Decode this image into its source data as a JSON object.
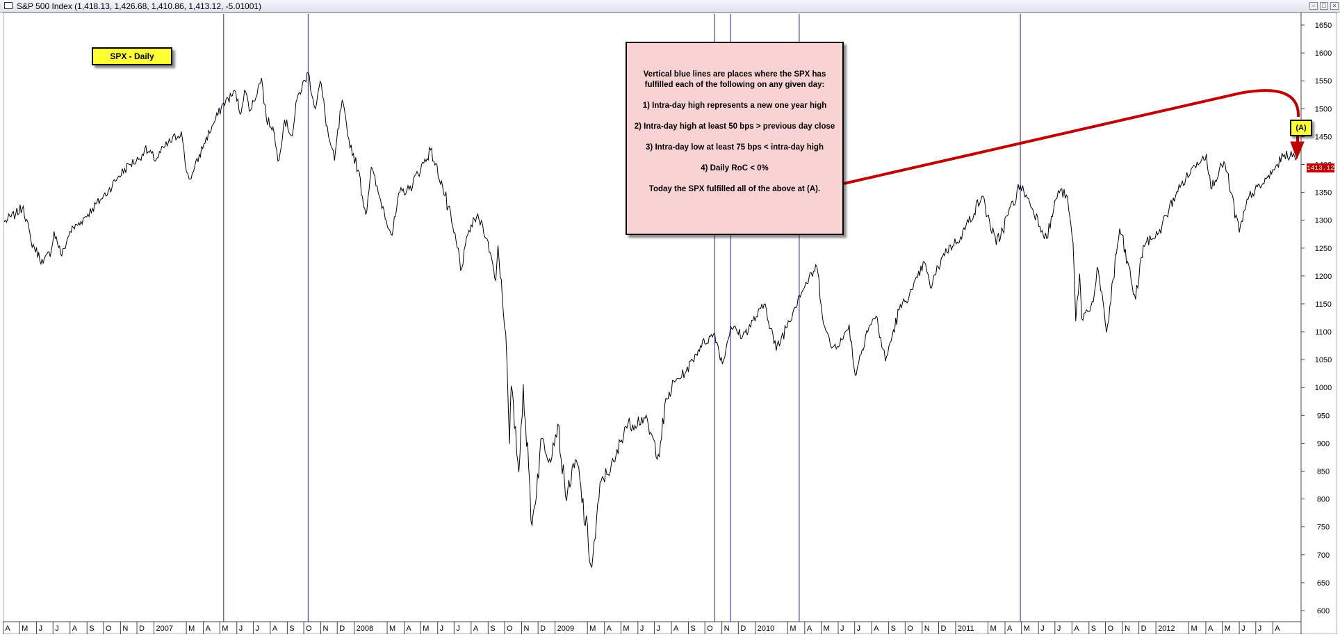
{
  "window": {
    "title": "S&P 500 Index (1,418.13, 1,426.68, 1,410.86, 1,413.12, -5.01001)"
  },
  "legend_label": "SPX - Daily",
  "note": {
    "lines": [
      "Vertical blue lines are places where the SPX has fulfilled each of the following on any given day:",
      "1) Intra-day high represents a new one year high",
      "2) Intra-day high at least 50 bps > previous day close",
      "3) Intra-day low at least 75 bps < intra-day high",
      "4) Daily RoC < 0%",
      "Today the SPX fulfilled all of the above at (A)."
    ]
  },
  "callout_label": "(A)",
  "last_price_label": "1413.12",
  "colors": {
    "price_line": "#000000",
    "signal_lines": "#2323d6",
    "arrow": "#c00000",
    "note_bg": "#f9d2d3",
    "label_bg": "#ffff33"
  },
  "chart_data": {
    "type": "line",
    "title": "",
    "series_name": "",
    "x_start": "2006-04-03",
    "x_end": "2012-09-14",
    "ylim": [
      580,
      1670
    ],
    "y_ticks": [
      600,
      650,
      700,
      750,
      800,
      850,
      900,
      950,
      1000,
      1050,
      1100,
      1150,
      1200,
      1250,
      1300,
      1350,
      1400,
      1450,
      1500,
      1550,
      1600,
      1650
    ],
    "x_tick_labels": [
      {
        "date": "2006-04-01",
        "label": "A"
      },
      {
        "date": "2006-05-01",
        "label": "M"
      },
      {
        "date": "2006-06-01",
        "label": "J"
      },
      {
        "date": "2006-07-01",
        "label": "J"
      },
      {
        "date": "2006-08-01",
        "label": "A"
      },
      {
        "date": "2006-09-01",
        "label": "S"
      },
      {
        "date": "2006-10-01",
        "label": "O"
      },
      {
        "date": "2006-11-01",
        "label": "N"
      },
      {
        "date": "2006-12-01",
        "label": "D"
      },
      {
        "date": "2007-01-01",
        "label": "2007"
      },
      {
        "date": "2007-03-01",
        "label": "M"
      },
      {
        "date": "2007-04-01",
        "label": "A"
      },
      {
        "date": "2007-05-01",
        "label": "M"
      },
      {
        "date": "2007-06-01",
        "label": "J"
      },
      {
        "date": "2007-07-01",
        "label": "J"
      },
      {
        "date": "2007-08-01",
        "label": "A"
      },
      {
        "date": "2007-09-01",
        "label": "S"
      },
      {
        "date": "2007-10-01",
        "label": "O"
      },
      {
        "date": "2007-11-01",
        "label": "N"
      },
      {
        "date": "2007-12-01",
        "label": "D"
      },
      {
        "date": "2008-01-01",
        "label": "2008"
      },
      {
        "date": "2008-03-01",
        "label": "M"
      },
      {
        "date": "2008-04-01",
        "label": "A"
      },
      {
        "date": "2008-05-01",
        "label": "M"
      },
      {
        "date": "2008-06-01",
        "label": "J"
      },
      {
        "date": "2008-07-01",
        "label": "J"
      },
      {
        "date": "2008-08-01",
        "label": "A"
      },
      {
        "date": "2008-09-01",
        "label": "S"
      },
      {
        "date": "2008-10-01",
        "label": "O"
      },
      {
        "date": "2008-11-01",
        "label": "N"
      },
      {
        "date": "2008-12-01",
        "label": "D"
      },
      {
        "date": "2009-01-01",
        "label": "2009"
      },
      {
        "date": "2009-03-01",
        "label": "M"
      },
      {
        "date": "2009-04-01",
        "label": "A"
      },
      {
        "date": "2009-05-01",
        "label": "M"
      },
      {
        "date": "2009-06-01",
        "label": "J"
      },
      {
        "date": "2009-07-01",
        "label": "J"
      },
      {
        "date": "2009-08-01",
        "label": "A"
      },
      {
        "date": "2009-09-01",
        "label": "S"
      },
      {
        "date": "2009-10-01",
        "label": "O"
      },
      {
        "date": "2009-11-01",
        "label": "N"
      },
      {
        "date": "2009-12-01",
        "label": "D"
      },
      {
        "date": "2010-01-01",
        "label": "2010"
      },
      {
        "date": "2010-03-01",
        "label": "M"
      },
      {
        "date": "2010-04-01",
        "label": "A"
      },
      {
        "date": "2010-05-01",
        "label": "M"
      },
      {
        "date": "2010-06-01",
        "label": "J"
      },
      {
        "date": "2010-07-01",
        "label": "J"
      },
      {
        "date": "2010-08-01",
        "label": "A"
      },
      {
        "date": "2010-09-01",
        "label": "S"
      },
      {
        "date": "2010-10-01",
        "label": "O"
      },
      {
        "date": "2010-11-01",
        "label": "N"
      },
      {
        "date": "2010-12-01",
        "label": "D"
      },
      {
        "date": "2011-01-01",
        "label": "2011"
      },
      {
        "date": "2011-03-01",
        "label": "M"
      },
      {
        "date": "2011-04-01",
        "label": "A"
      },
      {
        "date": "2011-05-01",
        "label": "M"
      },
      {
        "date": "2011-06-01",
        "label": "J"
      },
      {
        "date": "2011-07-01",
        "label": "J"
      },
      {
        "date": "2011-08-01",
        "label": "A"
      },
      {
        "date": "2011-09-01",
        "label": "S"
      },
      {
        "date": "2011-10-01",
        "label": "O"
      },
      {
        "date": "2011-11-01",
        "label": "N"
      },
      {
        "date": "2011-12-01",
        "label": "D"
      },
      {
        "date": "2012-01-01",
        "label": "2012"
      },
      {
        "date": "2012-03-01",
        "label": "M"
      },
      {
        "date": "2012-04-01",
        "label": "A"
      },
      {
        "date": "2012-05-01",
        "label": "M"
      },
      {
        "date": "2012-06-01",
        "label": "J"
      },
      {
        "date": "2012-07-01",
        "label": "J"
      },
      {
        "date": "2012-08-01",
        "label": "A"
      }
    ],
    "signal_dates": [
      "2007-05-08",
      "2007-10-09",
      "2009-10-19",
      "2009-11-17",
      "2010-03-22",
      "2011-04-29"
    ],
    "x": [
      "2006-04-03",
      "2006-04-24",
      "2006-05-08",
      "2006-05-22",
      "2006-06-13",
      "2006-06-28",
      "2006-07-03",
      "2006-07-17",
      "2006-08-01",
      "2006-08-21",
      "2006-09-11",
      "2006-09-25",
      "2006-10-10",
      "2006-10-27",
      "2006-11-17",
      "2006-12-04",
      "2006-12-15",
      "2007-01-05",
      "2007-01-19",
      "2007-02-20",
      "2007-02-27",
      "2007-03-06",
      "2007-03-14",
      "2007-04-02",
      "2007-04-19",
      "2007-05-08",
      "2007-05-30",
      "2007-06-07",
      "2007-06-15",
      "2007-06-26",
      "2007-07-16",
      "2007-07-25",
      "2007-08-06",
      "2007-08-15",
      "2007-08-27",
      "2007-09-10",
      "2007-09-19",
      "2007-10-09",
      "2007-10-22",
      "2007-10-31",
      "2007-11-15",
      "2007-11-26",
      "2007-12-10",
      "2007-12-20",
      "2008-01-08",
      "2008-01-22",
      "2008-02-01",
      "2008-02-14",
      "2008-03-10",
      "2008-03-24",
      "2008-04-10",
      "2008-05-19",
      "2008-06-10",
      "2008-07-15",
      "2008-07-28",
      "2008-08-11",
      "2008-08-22",
      "2008-09-05",
      "2008-09-15",
      "2008-09-19",
      "2008-10-03",
      "2008-10-10",
      "2008-10-13",
      "2008-10-27",
      "2008-11-04",
      "2008-11-20",
      "2008-12-08",
      "2008-12-22",
      "2009-01-06",
      "2009-01-20",
      "2009-02-09",
      "2009-03-09",
      "2009-03-26",
      "2009-04-20",
      "2009-05-08",
      "2009-06-12",
      "2009-07-08",
      "2009-07-24",
      "2009-08-07",
      "2009-08-28",
      "2009-09-23",
      "2009-10-19",
      "2009-11-02",
      "2009-11-17",
      "2009-12-09",
      "2010-01-19",
      "2010-02-08",
      "2010-03-22",
      "2010-04-23",
      "2010-05-07",
      "2010-05-20",
      "2010-06-10",
      "2010-06-21",
      "2010-07-02",
      "2010-07-23",
      "2010-08-09",
      "2010-08-26",
      "2010-09-20",
      "2010-10-15",
      "2010-11-05",
      "2010-11-16",
      "2010-12-10",
      "2011-01-10",
      "2011-02-18",
      "2011-03-16",
      "2011-04-29",
      "2011-05-16",
      "2011-06-16",
      "2011-07-07",
      "2011-07-22",
      "2011-08-03",
      "2011-08-08",
      "2011-08-15",
      "2011-08-19",
      "2011-09-09",
      "2011-09-16",
      "2011-10-03",
      "2011-10-27",
      "2011-11-25",
      "2011-12-09",
      "2012-01-06",
      "2012-02-08",
      "2012-03-16",
      "2012-04-02",
      "2012-04-10",
      "2012-05-04",
      "2012-06-01",
      "2012-06-19",
      "2012-07-12",
      "2012-08-03",
      "2012-08-22",
      "2012-09-14"
    ],
    "values": [
      1297,
      1311,
      1325,
      1262,
      1223,
      1246,
      1280,
      1236,
      1280,
      1298,
      1321,
      1336,
      1353,
      1377,
      1400,
      1409,
      1427,
      1409,
      1430,
      1459,
      1400,
      1374,
      1387,
      1437,
      1472,
      1510,
      1530,
      1490,
      1533,
      1497,
      1555,
      1480,
      1467,
      1406,
      1480,
      1451,
      1518,
      1565,
      1500,
      1549,
      1451,
      1407,
      1515,
      1452,
      1390,
      1310,
      1395,
      1348,
      1273,
      1350,
      1355,
      1426,
      1361,
      1214,
      1282,
      1306,
      1292,
      1242,
      1192,
      1255,
      1099,
      899,
      1003,
      848,
      1006,
      752,
      909,
      872,
      934,
      805,
      869,
      677,
      832,
      867,
      929,
      946,
      880,
      979,
      1010,
      1029,
      1075,
      1097,
      1042,
      1110,
      1092,
      1150,
      1066,
      1166,
      1217,
      1110,
      1071,
      1087,
      1113,
      1022,
      1102,
      1128,
      1047,
      1139,
      1176,
      1225,
      1179,
      1240,
      1270,
      1343,
      1256,
      1363,
      1332,
      1267,
      1353,
      1345,
      1260,
      1119,
      1204,
      1123,
      1154,
      1216,
      1099,
      1285,
      1158,
      1255,
      1277,
      1351,
      1404,
      1419,
      1358,
      1405,
      1278,
      1344,
      1363,
      1390,
      1418,
      1413
    ]
  }
}
